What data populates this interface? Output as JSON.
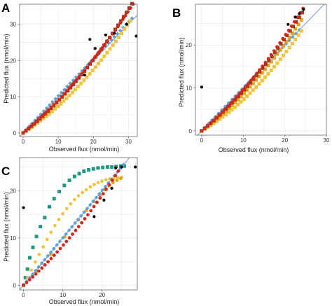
{
  "figure": {
    "panels": [
      {
        "letter": "A",
        "xlabel": "Observed flux (nmol/min)",
        "ylabel": "Predicted flux (nmol/min)",
        "xticks": [
          "0",
          "10",
          "20",
          "30"
        ],
        "yticks": [
          "0",
          "10",
          "20",
          "30"
        ]
      },
      {
        "letter": "B",
        "xlabel": "Observed flux (nmol/min)",
        "ylabel": "Predicted flux (nmol/min)",
        "xticks": [
          "0",
          "10",
          "20",
          "30"
        ],
        "yticks": [
          "0",
          "10",
          "20"
        ]
      },
      {
        "letter": "C",
        "xlabel": "Observed flux (nmol/min)",
        "ylabel": "Predicted flux (nmol/min)",
        "xticks": [
          "0",
          "10",
          "20"
        ],
        "yticks": [
          "0",
          "10",
          "20"
        ]
      }
    ]
  },
  "colors": {
    "black": "#000000",
    "red": "#d7261e",
    "darkred": "#a33a17",
    "orange": "#e8a21a",
    "yellow": "#f2c43d",
    "blue": "#5aa3d6",
    "teal": "#1f9a82",
    "identity": "#7f9fcf"
  },
  "chart_data": [
    {
      "type": "scatter",
      "panel": "A",
      "xlabel": "Observed flux (nmol/min)",
      "ylabel": "Predicted flux (nmol/min)",
      "xlim": [
        -1,
        32.5
      ],
      "ylim": [
        -1,
        35.5
      ],
      "grid": true,
      "identity_line": true,
      "series": [
        {
          "color": "blue",
          "marker": "diamond",
          "curve": {
            "a": 1.02,
            "b": 0.0,
            "x0": 0,
            "x1": 31,
            "n": 38
          }
        },
        {
          "color": "yellow",
          "marker": "square",
          "curve": {
            "a": 0.61,
            "b": 0.0132,
            "x0": 0,
            "x1": 30.5,
            "n": 38
          }
        },
        {
          "color": "darkred",
          "marker": "square",
          "curve": {
            "a": 0.75,
            "b": 0.0129,
            "x0": 0,
            "x1": 31,
            "n": 40
          }
        },
        {
          "color": "red",
          "marker": "circle",
          "curve": {
            "a": 0.8,
            "b": 0.0107,
            "x0": 0,
            "x1": 31.3,
            "n": 44
          }
        },
        {
          "color": "black",
          "marker": "circle",
          "points": [
            [
              20.5,
              23.3
            ],
            [
              17.5,
              16
            ],
            [
              19,
              25.8
            ],
            [
              23.5,
              27
            ],
            [
              26,
              27.5
            ],
            [
              29.5,
              30
            ],
            [
              32.2,
              26.7
            ]
          ]
        }
      ]
    },
    {
      "type": "scatter",
      "panel": "B",
      "xlabel": "Observed flux (nmol/min)",
      "ylabel": "Predicted flux (nmol/min)",
      "xlim": [
        -1.5,
        30
      ],
      "ylim": [
        -1,
        29.5
      ],
      "grid": true,
      "identity_line": true,
      "series": [
        {
          "color": "blue",
          "marker": "diamond",
          "curve": {
            "a": 1.0,
            "b": 0.0,
            "x0": 0,
            "x1": 23.5,
            "n": 30
          }
        },
        {
          "color": "yellow",
          "marker": "square",
          "curve": {
            "a": 0.55,
            "b": 0.0175,
            "x0": 0,
            "x1": 24,
            "n": 34
          }
        },
        {
          "color": "orange",
          "marker": "square",
          "curve": {
            "a": 0.7,
            "b": 0.0157,
            "x0": 0,
            "x1": 24,
            "n": 34
          }
        },
        {
          "color": "darkred",
          "marker": "square",
          "curve": {
            "a": 0.78,
            "b": 0.0148,
            "x0": 0,
            "x1": 24.2,
            "n": 34
          }
        },
        {
          "color": "red",
          "marker": "circle",
          "curve": {
            "a": 0.82,
            "b": 0.0143,
            "x0": 0,
            "x1": 24.4,
            "n": 36
          }
        },
        {
          "color": "black",
          "marker": "circle",
          "points": [
            [
              0,
              10.2
            ],
            [
              20.8,
              24.8
            ],
            [
              22.5,
              26.5
            ],
            [
              23.5,
              27.3
            ],
            [
              24.5,
              28.3
            ]
          ]
        }
      ]
    },
    {
      "type": "scatter",
      "panel": "C",
      "xlabel": "Observed flux (nmol/min)",
      "ylabel": "Predicted flux (nmol/min)",
      "xlim": [
        -1,
        29
      ],
      "ylim": [
        -1,
        27
      ],
      "grid": true,
      "identity_line": true,
      "series": [
        {
          "color": "teal",
          "marker": "square",
          "points": [
            [
              0,
              0
            ],
            [
              0.5,
              1.6
            ],
            [
              1,
              3.4
            ],
            [
              1.6,
              5.8
            ],
            [
              2.4,
              8
            ],
            [
              3.3,
              10.3
            ],
            [
              4.3,
              12.4
            ],
            [
              5.4,
              14.3
            ],
            [
              6.6,
              16.6
            ],
            [
              7.8,
              18.3
            ],
            [
              9.1,
              19.8
            ],
            [
              10.4,
              21.1
            ],
            [
              11.7,
              22.2
            ],
            [
              13,
              23
            ],
            [
              14.2,
              23.6
            ],
            [
              15.4,
              24.1
            ],
            [
              16.6,
              24.4
            ],
            [
              17.8,
              24.6
            ],
            [
              19,
              24.8
            ],
            [
              20.2,
              24.9
            ],
            [
              21.4,
              25
            ],
            [
              22.5,
              25
            ],
            [
              23.6,
              25.1
            ],
            [
              24.8,
              25.2
            ],
            [
              25.7,
              25.2
            ]
          ]
        },
        {
          "color": "yellow",
          "marker": "circle",
          "points": [
            [
              0,
              0
            ],
            [
              1,
              1.6
            ],
            [
              2,
              3.2
            ],
            [
              3,
              4.9
            ],
            [
              4,
              6.5
            ],
            [
              5,
              8.1
            ],
            [
              6,
              9.7
            ],
            [
              7,
              11.2
            ],
            [
              8,
              12.6
            ],
            [
              9,
              13.9
            ],
            [
              10,
              15.1
            ],
            [
              11,
              16.2
            ],
            [
              12,
              17.2
            ],
            [
              13,
              18.1
            ],
            [
              14,
              18.9
            ],
            [
              15,
              19.6
            ],
            [
              16,
              20.2
            ],
            [
              17,
              20.8
            ],
            [
              18,
              21.3
            ],
            [
              19,
              21.7
            ],
            [
              20,
              22
            ],
            [
              21,
              22.3
            ],
            [
              22,
              22.5
            ],
            [
              23,
              22.6
            ],
            [
              24,
              22.7
            ],
            [
              25,
              22.8
            ]
          ]
        },
        {
          "color": "orange",
          "marker": "circle",
          "points": [
            [
              0,
              0
            ],
            [
              3.5,
              3
            ],
            [
              7,
              6.5
            ],
            [
              10.5,
              10.2
            ],
            [
              14,
              13.8
            ],
            [
              16,
              15.8
            ],
            [
              18,
              17.7
            ],
            [
              19.5,
              19
            ],
            [
              20.8,
              20.2
            ],
            [
              21.8,
              21
            ],
            [
              22.8,
              21.7
            ],
            [
              23.8,
              22.2
            ],
            [
              24.8,
              22.6
            ]
          ]
        },
        {
          "color": "blue",
          "marker": "diamond",
          "curve": {
            "a": 1.0,
            "b": 0.0,
            "x0": 0,
            "x1": 25.5,
            "n": 34
          }
        },
        {
          "color": "red",
          "marker": "circle",
          "curve": {
            "a": 0.72,
            "b": 0.0115,
            "x0": 0,
            "x1": 24.2,
            "n": 32
          }
        },
        {
          "color": "black",
          "marker": "circle",
          "points": [
            [
              0,
              16.4
            ],
            [
              18,
              14.5
            ],
            [
              20.5,
              18
            ],
            [
              22.5,
              20.5
            ],
            [
              23.5,
              24.8
            ],
            [
              25,
              25
            ],
            [
              28.5,
              25
            ]
          ]
        }
      ]
    }
  ]
}
